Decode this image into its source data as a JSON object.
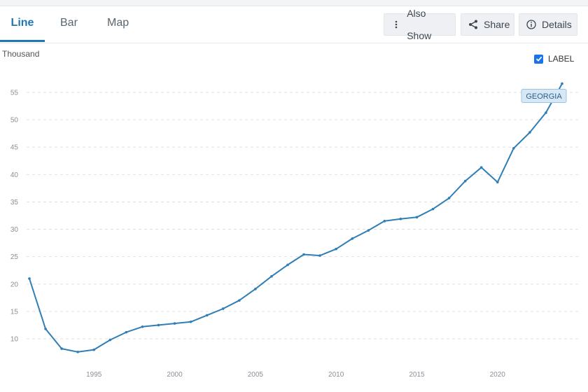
{
  "tabs": [
    {
      "label": "Line",
      "active": true
    },
    {
      "label": "Bar",
      "active": false
    },
    {
      "label": "Map",
      "active": false
    }
  ],
  "actions": {
    "also_show": "Also Show",
    "share": "Share",
    "details": "Details"
  },
  "label_toggle": {
    "text": "LABEL",
    "checked": true
  },
  "colors": {
    "accent": "#1f77b4",
    "series": "#2f7eb5",
    "grid": "#e0e0e0",
    "tag_bg": "#d6e8f5"
  },
  "chart_data": {
    "type": "line",
    "ylabel": "Thousand",
    "xlim": [
      1991,
      2024
    ],
    "ylim": [
      5,
      57.5
    ],
    "x_ticks": [
      1995,
      2000,
      2005,
      2010,
      2015,
      2020
    ],
    "y_ticks": [
      10,
      15,
      20,
      25,
      30,
      35,
      40,
      45,
      50,
      55
    ],
    "grid": "horizontal-dashed",
    "series": [
      {
        "name": "GEORGIA",
        "x": [
          1991,
          1992,
          1993,
          1994,
          1995,
          1996,
          1997,
          1998,
          1999,
          2000,
          2001,
          2002,
          2003,
          2004,
          2005,
          2006,
          2007,
          2008,
          2009,
          2010,
          2011,
          2012,
          2013,
          2014,
          2015,
          2016,
          2017,
          2018,
          2019,
          2020,
          2021,
          2022,
          2023,
          2024
        ],
        "values": [
          21.0,
          11.8,
          8.2,
          7.6,
          8.0,
          9.8,
          11.2,
          12.2,
          12.5,
          12.8,
          13.1,
          14.3,
          15.5,
          17.0,
          19.1,
          21.4,
          23.5,
          25.4,
          25.2,
          26.4,
          28.3,
          29.8,
          31.5,
          31.9,
          32.2,
          33.7,
          35.7,
          38.8,
          41.3,
          38.6,
          44.8,
          47.7,
          51.3,
          56.6
        ]
      }
    ]
  }
}
